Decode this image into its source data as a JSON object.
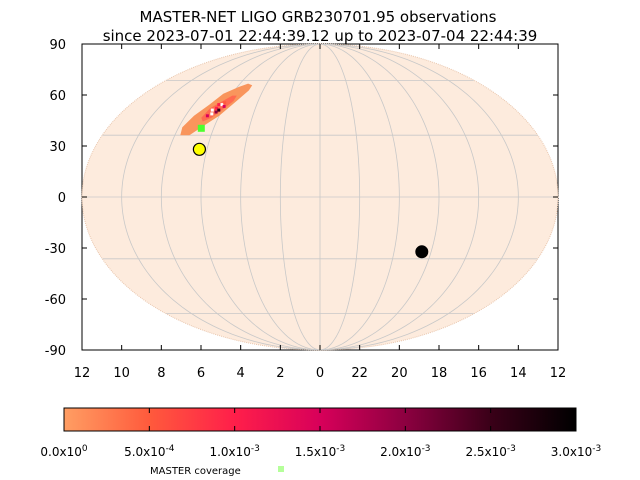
{
  "chart_data": {
    "type": "scatter",
    "title": "MASTER-NET LIGO GRB230701.95 observations",
    "subtitle": "since 2023-07-01 22:44:39.12 up to 2023-07-04 22:44:39",
    "projection": "mollweide",
    "xlabel": "",
    "ylabel": "",
    "x_ticks": [
      "12",
      "10",
      "8",
      "6",
      "4",
      "2",
      "0",
      "22",
      "20",
      "18",
      "16",
      "14",
      "12"
    ],
    "y_ticks": [
      "90",
      "60",
      "30",
      "0",
      "-30",
      "-60",
      "-90"
    ],
    "ra_range_hours": [
      12,
      -12
    ],
    "dec_range": [
      -90,
      90
    ],
    "grid": true,
    "sky_fill_color": "#fdebdd",
    "probability_region": {
      "description_color_low": "#f9955c",
      "outer_contour": [
        [
          6.6,
          52
        ],
        [
          5.9,
          56
        ],
        [
          5.4,
          58
        ],
        [
          5.0,
          57
        ],
        [
          5.0,
          54
        ],
        [
          5.4,
          48
        ],
        [
          6.0,
          40
        ],
        [
          6.6,
          35
        ],
        [
          7.2,
          30
        ],
        [
          7.7,
          30
        ],
        [
          7.8,
          34
        ],
        [
          7.5,
          40
        ],
        [
          7.0,
          46
        ]
      ],
      "inner_contour": [
        [
          6.3,
          48
        ],
        [
          5.9,
          51
        ],
        [
          5.6,
          51
        ],
        [
          5.6,
          48
        ],
        [
          6.0,
          43
        ],
        [
          6.4,
          39
        ],
        [
          6.8,
          37
        ],
        [
          7.0,
          39
        ],
        [
          6.8,
          44
        ]
      ],
      "peak_points": [
        [
          6.2,
          46
        ],
        [
          6.4,
          44
        ],
        [
          6.0,
          45
        ],
        [
          6.5,
          41
        ],
        [
          6.3,
          42
        ],
        [
          6.1,
          47
        ],
        [
          6.6,
          43
        ],
        [
          6.7,
          40
        ],
        [
          6.2,
          43
        ],
        [
          6.4,
          46
        ]
      ]
    },
    "markers": [
      {
        "type": "master-coverage",
        "ra": 6.7,
        "dec": 33.5,
        "color": "#4cff2e"
      },
      {
        "type": "sun",
        "ra": 6.4,
        "dec": 23.0,
        "color": "#ffff00"
      },
      {
        "type": "moon",
        "ra": 18.5,
        "dec": -26.5,
        "color": "#000000"
      }
    ],
    "colorbar": {
      "min": 0.0,
      "max": 0.003,
      "tick_values": [
        0,
        0.0005,
        0.001,
        0.0015,
        0.002,
        0.0025,
        0.003
      ],
      "labels": [
        {
          "mantissa": "0.0x10",
          "exp": "0"
        },
        {
          "mantissa": "5.0x10",
          "exp": "-4"
        },
        {
          "mantissa": "1.0x10",
          "exp": "-3"
        },
        {
          "mantissa": "1.5x10",
          "exp": "-3"
        },
        {
          "mantissa": "2.0x10",
          "exp": "-3"
        },
        {
          "mantissa": "2.5x10",
          "exp": "-3"
        },
        {
          "mantissa": "3.0x10",
          "exp": "-3"
        }
      ],
      "colors": [
        "#ff9e63",
        "#ff5a3c",
        "#ff1f4a",
        "#d8005a",
        "#8c0040",
        "#3a0018",
        "#000000"
      ]
    },
    "legend": [
      {
        "label": "MASTER coverage",
        "color": "#b5ff9a",
        "placement": "bottom"
      }
    ]
  }
}
